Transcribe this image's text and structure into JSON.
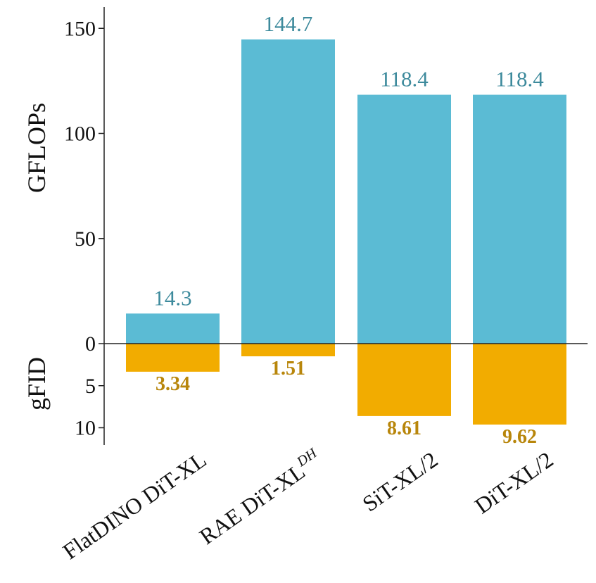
{
  "chart_data": {
    "type": "bar",
    "categories": [
      "FlatDINO DiT-XL",
      "RAE DiT-XL",
      "SiT-XL/2",
      "DiT-XL/2"
    ],
    "category_superscripts": [
      "",
      "DH",
      "",
      ""
    ],
    "series": [
      {
        "values": [
          14.3,
          144.7,
          118.4,
          118.4
        ],
        "labels": [
          "14.3",
          "144.7",
          "118.4",
          "118.4"
        ],
        "color": "#5bbbd4",
        "label_color": "#3d8a9c"
      },
      {
        "values": [
          3.34,
          1.51,
          8.61,
          9.62
        ],
        "labels": [
          "3.34",
          "1.51",
          "8.61",
          "9.62"
        ],
        "color": "#f2ac00",
        "label_color": "#b8860b"
      }
    ],
    "top_axis": {
      "title": "GFLOPs",
      "ticks": [
        "0",
        "50",
        "100",
        "150"
      ],
      "tick_values": [
        0,
        50,
        100,
        150
      ],
      "range": [
        0,
        160
      ]
    },
    "bottom_axis": {
      "title": "gFID",
      "ticks": [
        "5",
        "10"
      ],
      "tick_values": [
        5,
        10
      ],
      "range": [
        0,
        12
      ]
    },
    "grid": false,
    "legend": "none"
  }
}
